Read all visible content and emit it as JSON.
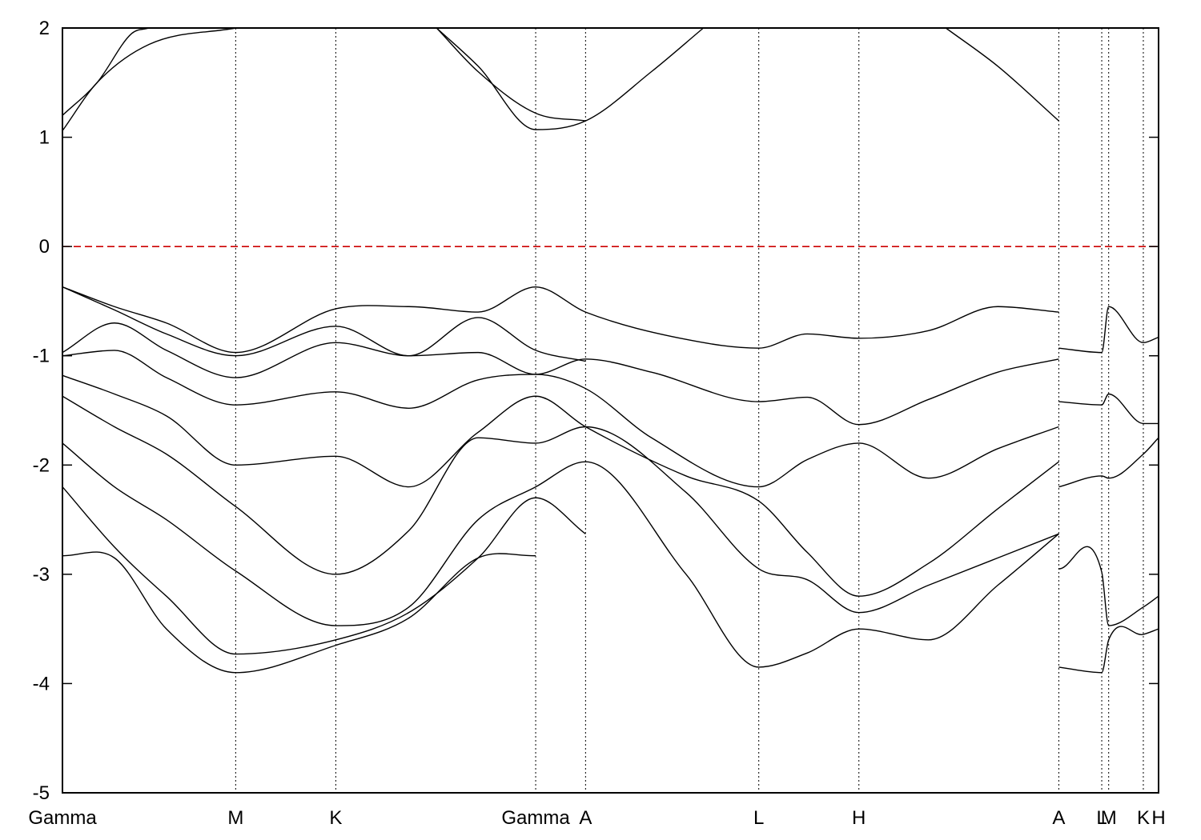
{
  "chart_data": {
    "type": "line",
    "title": "",
    "xlabel": "",
    "ylabel": "",
    "ylim": [
      -5,
      2
    ],
    "yticks": [
      -5,
      -4,
      -3,
      -2,
      -1,
      0,
      1,
      2
    ],
    "grid": "vertical dotted lines at high-symmetry points",
    "fermi_level": {
      "y": 0,
      "color": "#cc0000",
      "style": "dashed"
    },
    "kpath_ticks": [
      {
        "label": "Gamma",
        "x": 0.0
      },
      {
        "label": "M",
        "x": 0.5
      },
      {
        "label": "K",
        "x": 0.789
      },
      {
        "label": "Gamma",
        "x": 1.366
      },
      {
        "label": "A",
        "x": 1.51
      },
      {
        "label": "L",
        "x": 2.01
      },
      {
        "label": "H",
        "x": 2.299
      },
      {
        "label": "A",
        "x": 2.876
      },
      {
        "label": "L",
        "x": 3.0
      },
      {
        "label": "M",
        "x": 3.02
      },
      {
        "label": "K",
        "x": 3.12
      },
      {
        "label": "H",
        "x": 3.164
      }
    ],
    "xlim": [
      0,
      3.164
    ],
    "series": [
      {
        "x": [
          0,
          0.1,
          0.25,
          0.5
        ],
        "y": [
          1.06,
          1.5,
          1.85,
          2.0
        ]
      },
      {
        "x": [
          0,
          0.1,
          0.2,
          0.25
        ],
        "y": [
          1.2,
          1.5,
          1.95,
          2.0
        ]
      },
      {
        "x": [
          1.08,
          1.2,
          1.366,
          1.51,
          1.7,
          1.85
        ],
        "y": [
          2.0,
          1.65,
          1.07,
          1.15,
          1.6,
          2.0
        ]
      },
      {
        "x": [
          1.08,
          1.2,
          1.366,
          1.51
        ],
        "y": [
          2.0,
          1.6,
          1.22,
          1.15
        ]
      },
      {
        "x": [
          2.55,
          2.7,
          2.876
        ],
        "y": [
          2.0,
          1.65,
          1.15
        ]
      },
      {
        "x": [
          0,
          0.15,
          0.3,
          0.5,
          0.789,
          1.0,
          1.2,
          1.366,
          1.51,
          1.8,
          2.01,
          2.15,
          2.299,
          2.5,
          2.7,
          2.876
        ],
        "y": [
          -0.37,
          -0.55,
          -0.7,
          -0.97,
          -0.57,
          -0.55,
          -0.6,
          -0.37,
          -0.6,
          -0.85,
          -0.93,
          -0.8,
          -0.84,
          -0.77,
          -0.55,
          -0.6
        ]
      },
      {
        "x": [
          0,
          0.15,
          0.3,
          0.5,
          0.789,
          1.0,
          1.2,
          1.366,
          1.51
        ],
        "y": [
          -0.37,
          -0.58,
          -0.8,
          -1.0,
          -0.73,
          -1.0,
          -0.65,
          -0.95,
          -1.05
        ]
      },
      {
        "x": [
          0,
          0.15,
          0.3,
          0.5,
          0.789,
          1.0,
          1.2,
          1.366,
          1.51,
          1.7,
          2.01,
          2.15,
          2.299,
          2.5,
          2.7,
          2.876
        ],
        "y": [
          -0.97,
          -0.7,
          -0.95,
          -1.2,
          -0.88,
          -1.0,
          -0.97,
          -1.17,
          -1.03,
          -1.15,
          -1.42,
          -1.38,
          -1.63,
          -1.4,
          -1.15,
          -1.03
        ]
      },
      {
        "x": [
          0,
          0.15,
          0.3,
          0.5,
          0.789,
          1.0,
          1.2,
          1.366,
          1.51,
          1.7,
          2.01,
          2.15,
          2.299,
          2.5,
          2.7,
          2.876
        ],
        "y": [
          -1.0,
          -0.95,
          -1.2,
          -1.45,
          -1.33,
          -1.48,
          -1.22,
          -1.17,
          -1.3,
          -1.75,
          -2.2,
          -1.95,
          -1.8,
          -2.12,
          -1.85,
          -1.65
        ]
      },
      {
        "x": [
          0,
          0.15,
          0.3,
          0.5,
          0.789,
          1.0,
          1.2,
          1.366,
          1.51,
          1.8,
          2.01,
          2.15,
          2.299,
          2.5,
          2.7,
          2.876
        ],
        "y": [
          -1.18,
          -1.35,
          -1.55,
          -2.0,
          -1.92,
          -2.2,
          -1.7,
          -1.37,
          -1.65,
          -2.1,
          -2.33,
          -2.8,
          -3.2,
          -2.9,
          -2.4,
          -1.97
        ]
      },
      {
        "x": [
          0,
          0.15,
          0.3,
          0.5,
          0.789,
          1.0,
          1.2,
          1.366,
          1.51,
          1.8,
          2.01,
          2.15,
          2.299,
          2.5,
          2.7,
          2.876
        ],
        "y": [
          -1.37,
          -1.65,
          -1.9,
          -2.38,
          -3.0,
          -2.6,
          -1.75,
          -1.8,
          -1.65,
          -2.25,
          -2.95,
          -3.05,
          -3.35,
          -3.1,
          -2.85,
          -2.63
        ]
      },
      {
        "x": [
          0,
          0.15,
          0.3,
          0.5,
          0.789,
          1.0,
          1.2,
          1.366,
          1.51,
          1.8,
          2.01,
          2.15,
          2.299,
          2.5,
          2.7,
          2.876
        ],
        "y": [
          -1.8,
          -2.2,
          -2.5,
          -2.97,
          -3.47,
          -3.3,
          -2.5,
          -2.2,
          -1.97,
          -3.0,
          -3.85,
          -3.72,
          -3.5,
          -3.6,
          -3.1,
          -2.63
        ]
      },
      {
        "x": [
          0,
          0.15,
          0.3,
          0.5,
          0.789,
          1.0,
          1.2,
          1.366,
          1.51
        ],
        "y": [
          -2.2,
          -2.75,
          -3.2,
          -3.73,
          -3.6,
          -3.35,
          -2.85,
          -2.3,
          -2.63
        ]
      },
      {
        "x": [
          0,
          0.15,
          0.3,
          0.5,
          0.789,
          1.0,
          1.2,
          1.366
        ],
        "y": [
          -2.83,
          -2.85,
          -3.5,
          -3.9,
          -3.65,
          -3.4,
          -2.85,
          -2.83
        ]
      },
      {
        "x": [
          2.876,
          3.0,
          3.02,
          3.12,
          3.164
        ],
        "y": [
          -0.93,
          -0.97,
          -0.55,
          -0.88,
          -0.83
        ]
      },
      {
        "x": [
          2.876,
          3.0,
          3.02,
          3.12,
          3.164
        ],
        "y": [
          -1.42,
          -1.45,
          -1.35,
          -1.62,
          -1.62
        ]
      },
      {
        "x": [
          2.876,
          3.0,
          3.02,
          3.12,
          3.164
        ],
        "y": [
          -2.2,
          -2.1,
          -2.12,
          -1.9,
          -1.75
        ]
      },
      {
        "x": [
          2.876,
          3.0,
          3.02,
          3.12,
          3.164
        ],
        "y": [
          -2.95,
          -2.98,
          -3.47,
          -3.3,
          -3.2
        ]
      },
      {
        "x": [
          2.876,
          3.0,
          3.02,
          3.12,
          3.164
        ],
        "y": [
          -3.85,
          -3.9,
          -3.6,
          -3.55,
          -3.5
        ]
      }
    ]
  }
}
